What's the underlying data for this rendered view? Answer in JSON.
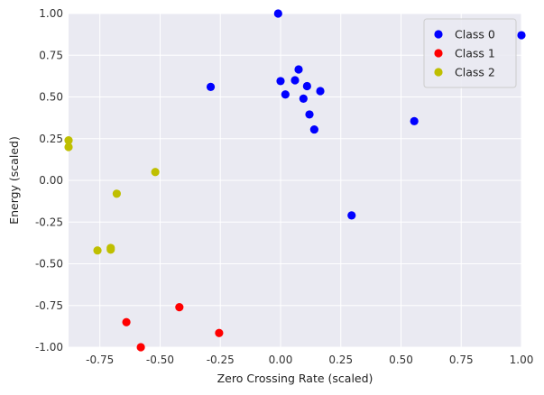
{
  "chart_data": {
    "type": "scatter",
    "xlabel": "Zero Crossing Rate (scaled)",
    "ylabel": "Energy (scaled)",
    "xlim": [
      -0.88,
      1.0
    ],
    "ylim": [
      -1.0,
      1.0
    ],
    "xticks": [
      "-0.75",
      "-0.50",
      "-0.25",
      "0.00",
      "0.25",
      "0.50",
      "0.75",
      "1.00"
    ],
    "xtick_values": [
      -0.75,
      -0.5,
      -0.25,
      0.0,
      0.25,
      0.5,
      0.75,
      1.0
    ],
    "yticks": [
      "1.00",
      "0.75",
      "0.50",
      "0.25",
      "0.00",
      "-0.25",
      "-0.50",
      "-0.75",
      "-1.00"
    ],
    "ytick_values": [
      1.0,
      0.75,
      0.5,
      0.25,
      0.0,
      -0.25,
      -0.5,
      -0.75,
      -1.0
    ],
    "grid": true,
    "legend_position": "top-right",
    "series": [
      {
        "name": "Class 0",
        "color": "#0000ff",
        "points": [
          [
            -0.01,
            1.0
          ],
          [
            0.075,
            0.665
          ],
          [
            0.06,
            0.6
          ],
          [
            0.0,
            0.595
          ],
          [
            0.11,
            0.565
          ],
          [
            0.165,
            0.535
          ],
          [
            0.02,
            0.515
          ],
          [
            0.095,
            0.49
          ],
          [
            0.12,
            0.395
          ],
          [
            0.14,
            0.305
          ],
          [
            -0.29,
            0.56
          ],
          [
            0.555,
            0.355
          ],
          [
            1.0,
            0.87
          ],
          [
            0.295,
            -0.21
          ]
        ]
      },
      {
        "name": "Class 1",
        "color": "#ff0000",
        "points": [
          [
            -0.42,
            -0.76
          ],
          [
            -0.64,
            -0.85
          ],
          [
            -0.255,
            -0.915
          ],
          [
            -0.58,
            -1.0
          ]
        ]
      },
      {
        "name": "Class 2",
        "color": "#bfbf00",
        "points": [
          [
            -0.88,
            0.24
          ],
          [
            -0.88,
            0.2
          ],
          [
            -0.52,
            0.05
          ],
          [
            -0.68,
            -0.08
          ],
          [
            -0.705,
            -0.405
          ],
          [
            -0.705,
            -0.415
          ],
          [
            -0.76,
            -0.42
          ]
        ]
      }
    ]
  }
}
